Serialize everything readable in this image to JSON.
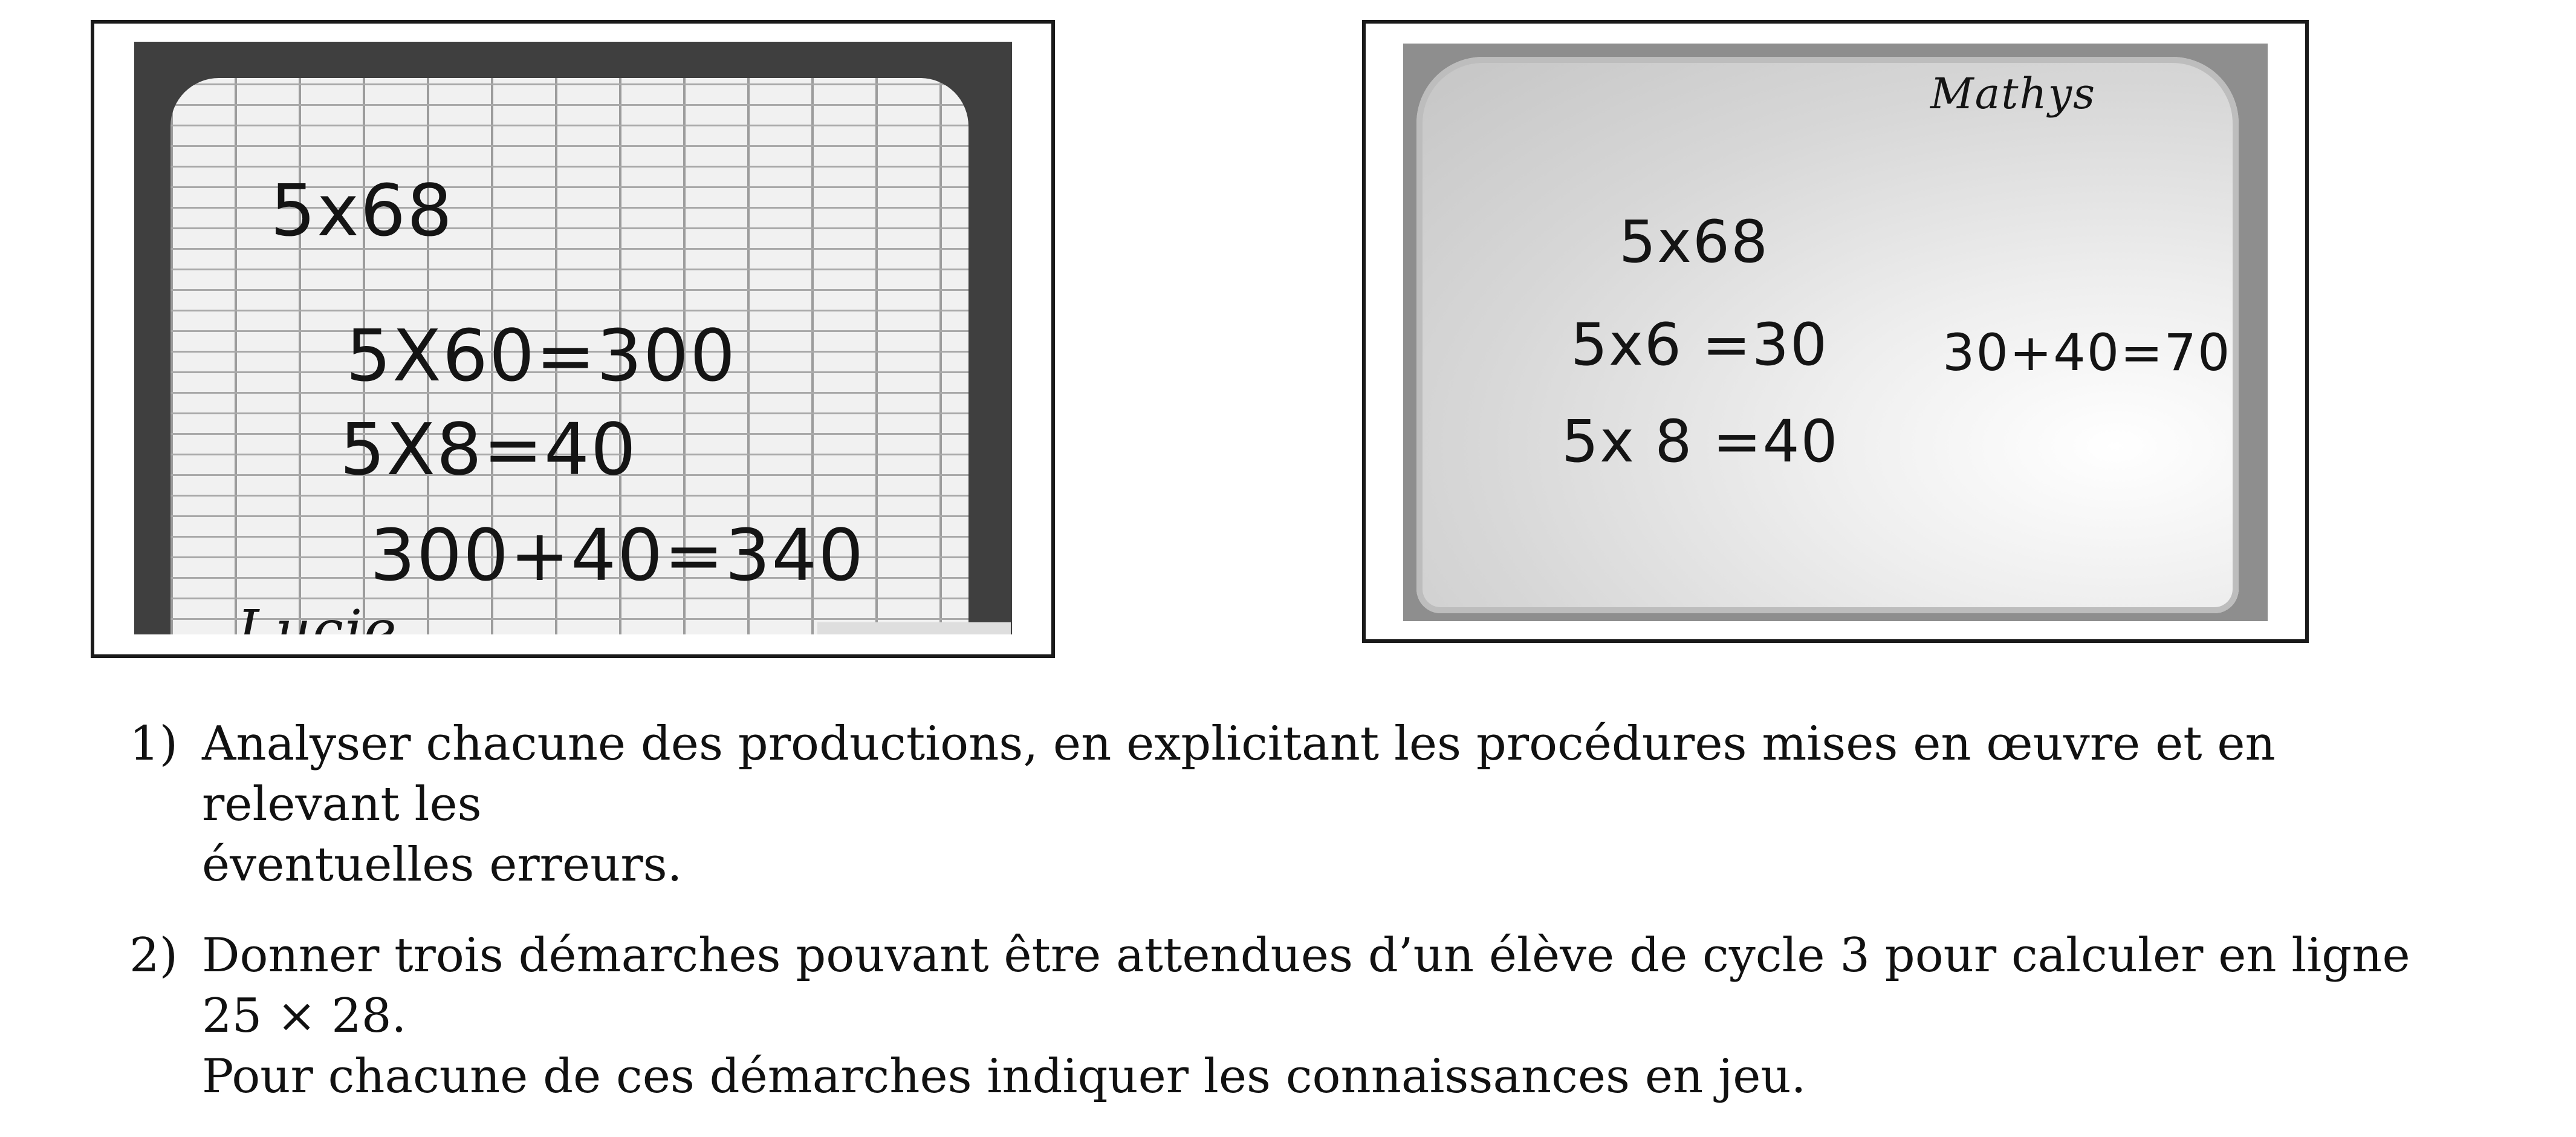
{
  "productions": {
    "left": {
      "title": "5x68",
      "line1": "5X60=300",
      "line2": "5X8=40",
      "line3": "300+40=340",
      "name": "Lucie"
    },
    "right": {
      "name": "Mathys",
      "title": "5x68",
      "line1": "5x6 =30",
      "line2": "5x 8 =40",
      "side": "30+40=70"
    }
  },
  "questions": [
    {
      "number": "1)",
      "line1": "Analyser chacune des productions, en explicitant les procédures mises en œuvre et en relevant les",
      "line2": "éventuelles erreurs."
    },
    {
      "number": "2)",
      "line1": "Donner trois démarches pouvant être attendues d’un élève de cycle 3 pour calculer en ligne 25 × 28.",
      "line2": "Pour chacune de ces démarches indiquer les connaissances en jeu."
    }
  ]
}
